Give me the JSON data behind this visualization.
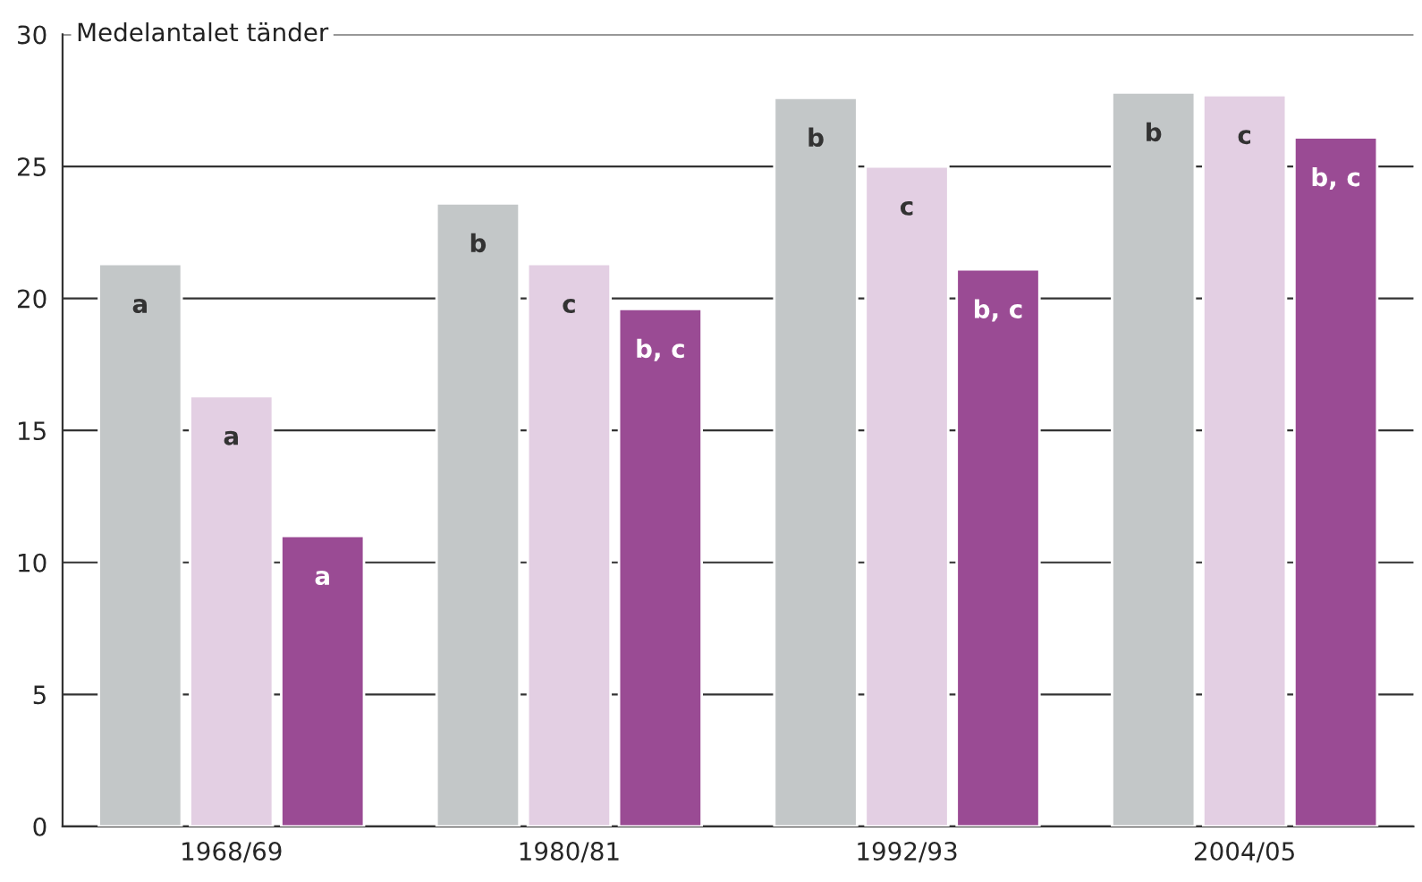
{
  "chart_data": {
    "type": "bar",
    "ylabel": "Medelantalet tänder",
    "categories": [
      "1968/69",
      "1980/81",
      "1992/93",
      "2004/05"
    ],
    "series": [
      {
        "color": "#c3c7c8",
        "values": [
          21.3,
          23.6,
          27.6,
          27.8
        ],
        "value_labels": [
          "a",
          "b",
          "b",
          "b"
        ]
      },
      {
        "color": "#e3cfe3",
        "values": [
          16.3,
          21.3,
          25.0,
          27.7
        ],
        "value_labels": [
          "a",
          "c",
          "c",
          "c"
        ]
      },
      {
        "color": "#9a4b94",
        "values": [
          11.0,
          19.6,
          21.1,
          26.1
        ],
        "value_labels": [
          "a",
          "b, c",
          "b, c",
          "b, c"
        ]
      }
    ],
    "ylim": [
      0,
      30
    ],
    "yticks": [
      0,
      5,
      10,
      15,
      20,
      25,
      30
    ],
    "grid": "y",
    "legend": false
  }
}
